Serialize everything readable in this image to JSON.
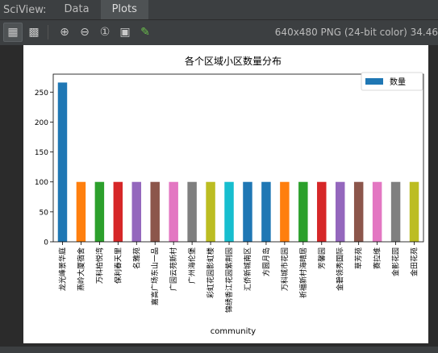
{
  "window": {
    "app_label": "SciView:",
    "tabs": [
      {
        "label": "Data",
        "active": false
      },
      {
        "label": "Plots",
        "active": true
      }
    ]
  },
  "toolbar": {
    "icons": [
      "checkerboard-icon",
      "chessboard-icon",
      "zoom-in-icon",
      "zoom-out-icon",
      "actual-size-icon",
      "fit-zoom-icon",
      "color-picker-icon"
    ],
    "image_info": "640x480 PNG (24-bit color) 34.46"
  },
  "chart_data": {
    "type": "bar",
    "title": "各个区域小区数量分布",
    "xlabel": "community",
    "ylabel": "",
    "ylim": [
      0,
      280
    ],
    "yticks": [
      0,
      50,
      100,
      150,
      200,
      250
    ],
    "grid": false,
    "legend": {
      "placement": "top-right",
      "label": "数量"
    },
    "categories": [
      "龙光峰景华庭",
      "燕岭大厦宿舍",
      "万科柏悦湾",
      "保利春天里",
      "名雅苑",
      "嘉高广场东山一品",
      "广园云苑新村",
      "广州海伦堡",
      "彩虹花园影虹楼",
      "锦绣香江花园紫荆园",
      "汇侨新城南区",
      "方圆月岛",
      "万科城市花园",
      "祈福新村海晴居",
      "芳馨园",
      "金碧领秀国际",
      "草芳苑",
      "赛拉维",
      "金影花园",
      "金田花苑"
    ],
    "values": [
      266,
      100,
      100,
      100,
      100,
      100,
      100,
      100,
      100,
      100,
      100,
      100,
      100,
      100,
      100,
      100,
      100,
      100,
      100,
      100
    ],
    "colors": [
      "#1f77b4",
      "#ff7f0e",
      "#2ca02c",
      "#d62728",
      "#9467bd",
      "#8c564b",
      "#e377c2",
      "#7f7f7f",
      "#bcbd22",
      "#17becf",
      "#1f77b4",
      "#1f77b4",
      "#ff7f0e",
      "#2ca02c",
      "#d62728",
      "#9467bd",
      "#8c564b",
      "#e377c2",
      "#7f7f7f",
      "#bcbd22"
    ],
    "legend_color": "#1f77b4"
  }
}
